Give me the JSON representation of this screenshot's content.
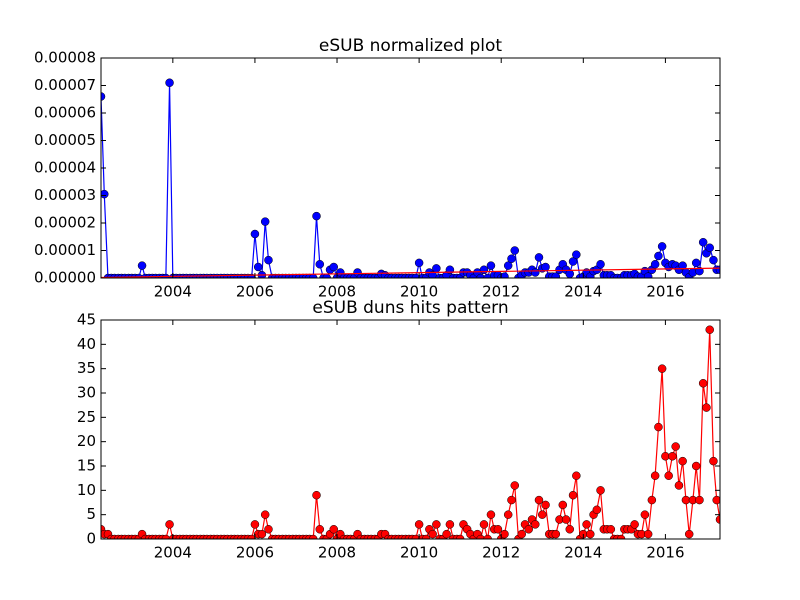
{
  "chart_data": [
    {
      "type": "line",
      "title": "eSUB normalized plot",
      "x": [
        2002.25,
        2002.33,
        2002.42,
        2002.5,
        2002.58,
        2002.67,
        2002.75,
        2002.83,
        2002.92,
        2003,
        2003.08,
        2003.17,
        2003.25,
        2003.33,
        2003.42,
        2003.5,
        2003.58,
        2003.67,
        2003.75,
        2003.83,
        2003.92,
        2004,
        2004.08,
        2004.17,
        2004.25,
        2004.33,
        2004.42,
        2004.5,
        2004.58,
        2004.67,
        2004.75,
        2004.83,
        2004.92,
        2005,
        2005.08,
        2005.17,
        2005.25,
        2005.33,
        2005.42,
        2005.5,
        2005.58,
        2005.67,
        2005.75,
        2005.83,
        2005.92,
        2006,
        2006.08,
        2006.17,
        2006.25,
        2006.33,
        2006.42,
        2006.5,
        2006.58,
        2006.67,
        2006.75,
        2006.83,
        2006.92,
        2007,
        2007.08,
        2007.17,
        2007.25,
        2007.33,
        2007.42,
        2007.5,
        2007.58,
        2007.67,
        2007.75,
        2007.83,
        2007.92,
        2008,
        2008.08,
        2008.17,
        2008.25,
        2008.33,
        2008.42,
        2008.5,
        2008.58,
        2008.67,
        2008.75,
        2008.83,
        2008.92,
        2009,
        2009.08,
        2009.17,
        2009.25,
        2009.33,
        2009.42,
        2009.5,
        2009.58,
        2009.67,
        2009.75,
        2009.83,
        2009.92,
        2010,
        2010.08,
        2010.17,
        2010.25,
        2010.33,
        2010.42,
        2010.5,
        2010.58,
        2010.67,
        2010.75,
        2010.83,
        2010.92,
        2011,
        2011.08,
        2011.17,
        2011.25,
        2011.33,
        2011.42,
        2011.5,
        2011.58,
        2011.67,
        2011.75,
        2011.83,
        2011.92,
        2012,
        2012.08,
        2012.17,
        2012.25,
        2012.33,
        2012.42,
        2012.5,
        2012.58,
        2012.67,
        2012.75,
        2012.83,
        2012.92,
        2013,
        2013.08,
        2013.17,
        2013.25,
        2013.33,
        2013.42,
        2013.5,
        2013.58,
        2013.67,
        2013.75,
        2013.83,
        2013.92,
        2014,
        2014.08,
        2014.17,
        2014.25,
        2014.33,
        2014.42,
        2014.5,
        2014.58,
        2014.67,
        2014.75,
        2014.83,
        2014.92,
        2015,
        2015.08,
        2015.17,
        2015.25,
        2015.33,
        2015.42,
        2015.5,
        2015.58,
        2015.67,
        2015.75,
        2015.83,
        2015.92,
        2016,
        2016.08,
        2016.17,
        2016.25,
        2016.33,
        2016.42,
        2016.5,
        2016.58,
        2016.67,
        2016.75,
        2016.83,
        2016.92,
        2017,
        2017.08,
        2017.17,
        2017.25,
        2017.33
      ],
      "series": [
        {
          "color": "#0000ff",
          "marker": "o",
          "values": [
            6.6e-05,
            3.05e-05,
            0,
            0,
            0,
            0,
            0,
            0,
            0,
            0,
            0,
            0,
            4.5e-06,
            0,
            0,
            0,
            0,
            0,
            0,
            0,
            7.1e-05,
            0,
            0,
            0,
            0,
            0,
            0,
            0,
            0,
            0,
            0,
            0,
            0,
            0,
            0,
            0,
            0,
            0,
            0,
            0,
            0,
            0,
            0,
            0,
            0,
            1.6e-05,
            4e-06,
            1e-06,
            2.05e-05,
            6.5e-06,
            0,
            0,
            0,
            0,
            0,
            0,
            0,
            0,
            0,
            0,
            0,
            0,
            0,
            2.25e-05,
            5e-06,
            0,
            0,
            3e-06,
            4e-06,
            0,
            2e-06,
            0,
            0,
            0,
            0,
            2e-06,
            0,
            0,
            0,
            0,
            0,
            0,
            1.5e-06,
            1e-06,
            0,
            0,
            0,
            0,
            0,
            0,
            0,
            0,
            0,
            5.5e-06,
            0,
            0,
            2e-06,
            1e-06,
            3.5e-06,
            0,
            0,
            1e-06,
            3e-06,
            0,
            0,
            0,
            2e-06,
            2e-06,
            1e-06,
            0,
            2e-06,
            0,
            3e-06,
            0,
            4.5e-06,
            1e-06,
            1e-06,
            0,
            5e-07,
            4.5e-06,
            7e-06,
            1e-05,
            0,
            1e-06,
            2e-06,
            2e-06,
            3e-06,
            2e-06,
            7.5e-06,
            3.5e-06,
            4e-06,
            5e-07,
            5e-07,
            5e-07,
            3e-06,
            5e-06,
            3e-06,
            1.5e-06,
            6e-06,
            8.5e-06,
            0,
            5e-07,
            2e-06,
            5e-07,
            2.5e-06,
            3e-06,
            5e-06,
            1e-06,
            1e-06,
            1e-06,
            0,
            0,
            0,
            1e-06,
            1e-06,
            1e-06,
            1.5e-06,
            5e-07,
            5e-07,
            2.5e-06,
            5e-07,
            3e-06,
            5e-06,
            8e-06,
            1.15e-05,
            5.5e-06,
            4e-06,
            5e-06,
            4.5e-06,
            3e-06,
            4.5e-06,
            2e-06,
            3e-07,
            2e-06,
            5.5e-06,
            2.5e-06,
            1.3e-05,
            9e-06,
            1.1e-05,
            6.5e-06,
            3e-06,
            3e-06
          ]
        },
        {
          "color": "#ff0000",
          "x": [
            2002.25,
            2017.33
          ],
          "values": [
            2e-07,
            3.6e-06
          ]
        }
      ],
      "xlim": [
        2002.25,
        2017.33
      ],
      "xticks": [
        2004,
        2006,
        2008,
        2010,
        2012,
        2014,
        2016
      ],
      "ylim": [
        0,
        8e-05
      ],
      "yticks": [
        {
          "value": 0,
          "label": "0.00000"
        },
        {
          "value": 1e-05,
          "label": "0.00001"
        },
        {
          "value": 2e-05,
          "label": "0.00002"
        },
        {
          "value": 3e-05,
          "label": "0.00003"
        },
        {
          "value": 4e-05,
          "label": "0.00004"
        },
        {
          "value": 5e-05,
          "label": "0.00005"
        },
        {
          "value": 6e-05,
          "label": "0.00006"
        },
        {
          "value": 7e-05,
          "label": "0.00007"
        },
        {
          "value": 8e-05,
          "label": "0.00008"
        }
      ],
      "grid": false
    },
    {
      "type": "line",
      "title": "eSUB duns hits pattern",
      "x": [
        2002.25,
        2002.33,
        2002.42,
        2002.5,
        2002.58,
        2002.67,
        2002.75,
        2002.83,
        2002.92,
        2003,
        2003.08,
        2003.17,
        2003.25,
        2003.33,
        2003.42,
        2003.5,
        2003.58,
        2003.67,
        2003.75,
        2003.83,
        2003.92,
        2004,
        2004.08,
        2004.17,
        2004.25,
        2004.33,
        2004.42,
        2004.5,
        2004.58,
        2004.67,
        2004.75,
        2004.83,
        2004.92,
        2005,
        2005.08,
        2005.17,
        2005.25,
        2005.33,
        2005.42,
        2005.5,
        2005.58,
        2005.67,
        2005.75,
        2005.83,
        2005.92,
        2006,
        2006.08,
        2006.17,
        2006.25,
        2006.33,
        2006.42,
        2006.5,
        2006.58,
        2006.67,
        2006.75,
        2006.83,
        2006.92,
        2007,
        2007.08,
        2007.17,
        2007.25,
        2007.33,
        2007.42,
        2007.5,
        2007.58,
        2007.67,
        2007.75,
        2007.83,
        2007.92,
        2008,
        2008.08,
        2008.17,
        2008.25,
        2008.33,
        2008.42,
        2008.5,
        2008.58,
        2008.67,
        2008.75,
        2008.83,
        2008.92,
        2009,
        2009.08,
        2009.17,
        2009.25,
        2009.33,
        2009.42,
        2009.5,
        2009.58,
        2009.67,
        2009.75,
        2009.83,
        2009.92,
        2010,
        2010.08,
        2010.17,
        2010.25,
        2010.33,
        2010.42,
        2010.5,
        2010.58,
        2010.67,
        2010.75,
        2010.83,
        2010.92,
        2011,
        2011.08,
        2011.17,
        2011.25,
        2011.33,
        2011.42,
        2011.5,
        2011.58,
        2011.67,
        2011.75,
        2011.83,
        2011.92,
        2012,
        2012.08,
        2012.17,
        2012.25,
        2012.33,
        2012.42,
        2012.5,
        2012.58,
        2012.67,
        2012.75,
        2012.83,
        2012.92,
        2013,
        2013.08,
        2013.17,
        2013.25,
        2013.33,
        2013.42,
        2013.5,
        2013.58,
        2013.67,
        2013.75,
        2013.83,
        2013.92,
        2014,
        2014.08,
        2014.17,
        2014.25,
        2014.33,
        2014.42,
        2014.5,
        2014.58,
        2014.67,
        2014.75,
        2014.83,
        2014.92,
        2015,
        2015.08,
        2015.17,
        2015.25,
        2015.33,
        2015.42,
        2015.5,
        2015.58,
        2015.67,
        2015.75,
        2015.83,
        2015.92,
        2016,
        2016.08,
        2016.17,
        2016.25,
        2016.33,
        2016.42,
        2016.5,
        2016.58,
        2016.67,
        2016.75,
        2016.83,
        2016.92,
        2017,
        2017.08,
        2017.17,
        2017.25,
        2017.33
      ],
      "series": [
        {
          "color": "#ff0000",
          "marker": "o",
          "values": [
            2,
            1,
            1,
            0,
            0,
            0,
            0,
            0,
            0,
            0,
            0,
            0,
            1,
            0,
            0,
            0,
            0,
            0,
            0,
            0,
            3,
            0,
            0,
            0,
            0,
            0,
            0,
            0,
            0,
            0,
            0,
            0,
            0,
            0,
            0,
            0,
            0,
            0,
            0,
            0,
            0,
            0,
            0,
            0,
            0,
            3,
            1,
            1,
            5,
            2,
            0,
            0,
            0,
            0,
            0,
            0,
            0,
            0,
            0,
            0,
            0,
            0,
            0,
            9,
            2,
            0,
            0,
            1,
            2,
            0,
            1,
            0,
            0,
            0,
            0,
            1,
            0,
            0,
            0,
            0,
            0,
            0,
            1,
            1,
            0,
            0,
            0,
            0,
            0,
            0,
            0,
            0,
            0,
            3,
            0,
            0,
            2,
            1,
            3,
            0,
            0,
            1,
            3,
            0,
            0,
            0,
            3,
            2,
            1,
            0,
            1,
            0,
            3,
            0,
            5,
            2,
            2,
            0,
            1,
            5,
            8,
            11,
            0,
            1,
            3,
            2,
            4,
            3,
            8,
            5,
            7,
            1,
            1,
            1,
            4,
            7,
            4,
            2,
            9,
            13,
            0,
            1,
            3,
            1,
            5,
            6,
            10,
            2,
            2,
            2,
            0,
            0,
            0,
            2,
            2,
            2,
            3,
            1,
            1,
            5,
            1,
            8,
            13,
            23,
            35,
            17,
            13,
            17,
            19,
            11,
            16,
            8,
            1,
            8,
            15,
            8,
            32,
            27,
            43,
            16,
            8,
            4
          ]
        }
      ],
      "xlim": [
        2002.25,
        2017.33
      ],
      "xticks": [
        2004,
        2006,
        2008,
        2010,
        2012,
        2014,
        2016
      ],
      "ylim": [
        0,
        45
      ],
      "yticks": [
        0,
        5,
        10,
        15,
        20,
        25,
        30,
        35,
        40,
        45
      ],
      "grid": false
    }
  ]
}
